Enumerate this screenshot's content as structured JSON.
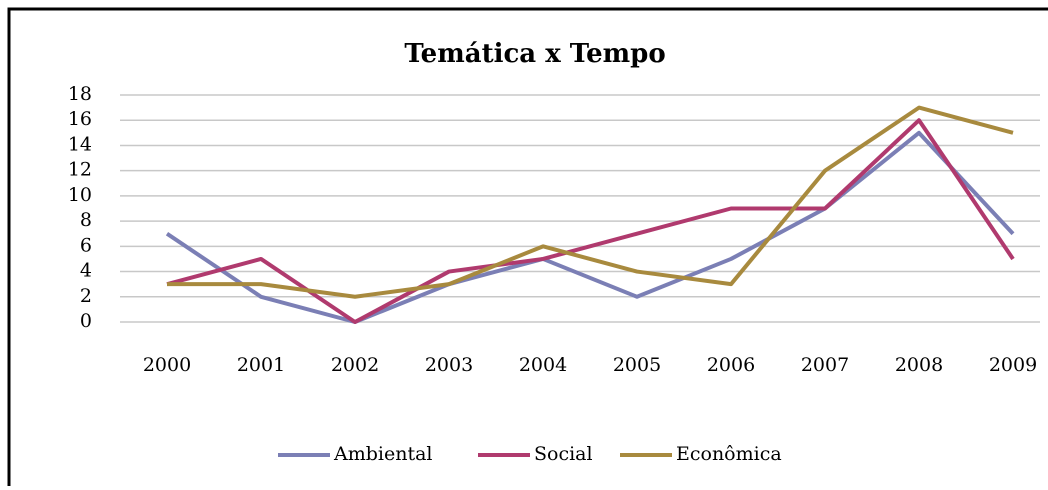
{
  "chart_data": {
    "type": "line",
    "title": "Temática x Tempo",
    "categories": [
      "2000",
      "2001",
      "2002",
      "2003",
      "2004",
      "2005",
      "2006",
      "2007",
      "2008",
      "2009"
    ],
    "series": [
      {
        "name": "Ambiental",
        "color": "#7b7fb5",
        "values": [
          7,
          2,
          0,
          3,
          5,
          2,
          5,
          9,
          15,
          7
        ]
      },
      {
        "name": "Social",
        "color": "#b03a6e",
        "values": [
          3,
          5,
          0,
          4,
          5,
          7,
          9,
          9,
          16,
          5
        ]
      },
      {
        "name": "Econômica",
        "color": "#a88a3e",
        "values": [
          3,
          3,
          2,
          3,
          6,
          4,
          3,
          12,
          17,
          15
        ]
      }
    ],
    "ylim": [
      0,
      18
    ],
    "yticks": [
      0,
      2,
      4,
      6,
      8,
      10,
      12,
      14,
      16,
      18
    ],
    "grid": true,
    "legend": "bottom"
  }
}
